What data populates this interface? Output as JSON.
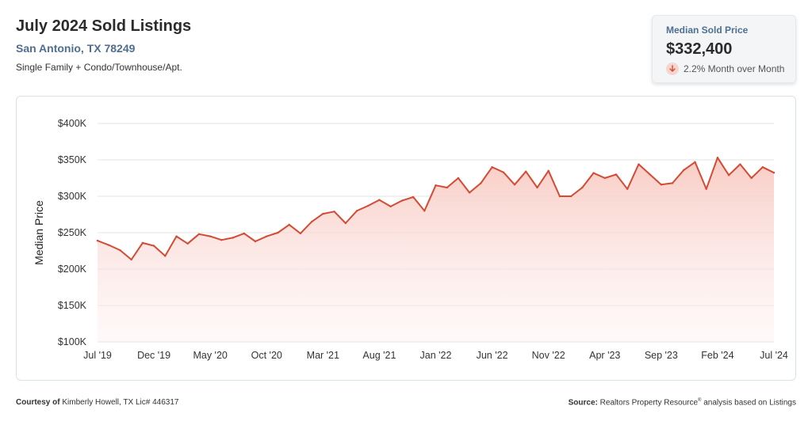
{
  "header": {
    "title": "July 2024 Sold Listings",
    "location": "San Antonio, TX 78249",
    "property_types": "Single Family + Condo/Townhouse/Apt."
  },
  "stat_card": {
    "label": "Median Sold Price",
    "value": "$332,400",
    "change": "2.2% Month over Month",
    "change_icon": "arrow-down-icon",
    "change_color": "#d44a33"
  },
  "footer": {
    "courtesy_label": "Courtesy of",
    "courtesy_text": "Kimberly Howell, TX Lic# 446317",
    "source_label": "Source:",
    "source_text": "Realtors Property Resource",
    "source_mark": "®",
    "source_suffix": " analysis based on Listings"
  },
  "colors": {
    "line": "#d44a33",
    "fill_top": "#f8c9c1",
    "grid": "#e3e3e3",
    "accent_text": "#4f6f8f"
  },
  "chart_data": {
    "type": "area",
    "title": "",
    "xlabel": "",
    "ylabel": "Median Price",
    "y_tick_labels": [
      "$100K",
      "$150K",
      "$200K",
      "$250K",
      "$300K",
      "$350K",
      "$400K"
    ],
    "y_tick_values": [
      100000,
      150000,
      200000,
      250000,
      300000,
      350000,
      400000
    ],
    "ylim": [
      100000,
      400000
    ],
    "x_tick_labels": [
      "Jul '19",
      "Dec '19",
      "May '20",
      "Oct '20",
      "Mar '21",
      "Aug '21",
      "Jan '22",
      "Jun '22",
      "Nov '22",
      "Apr '23",
      "Sep '23",
      "Feb '24",
      "Jul '24"
    ],
    "x_tick_positions": [
      0,
      5,
      10,
      15,
      20,
      25,
      30,
      35,
      40,
      45,
      50,
      55,
      60
    ],
    "grid": true,
    "legend": "none",
    "series": [
      {
        "x": [
          "Jul '19",
          "Aug '19",
          "Sep '19",
          "Oct '19",
          "Nov '19",
          "Dec '19",
          "Jan '20",
          "Feb '20",
          "Mar '20",
          "Apr '20",
          "May '20",
          "Jun '20",
          "Jul '20",
          "Aug '20",
          "Sep '20",
          "Oct '20",
          "Nov '20",
          "Dec '20",
          "Jan '21",
          "Feb '21",
          "Mar '21",
          "Apr '21",
          "May '21",
          "Jun '21",
          "Jul '21",
          "Aug '21",
          "Sep '21",
          "Oct '21",
          "Nov '21",
          "Dec '21",
          "Jan '22",
          "Feb '22",
          "Mar '22",
          "Apr '22",
          "May '22",
          "Jun '22",
          "Jul '22",
          "Aug '22",
          "Sep '22",
          "Oct '22",
          "Nov '22",
          "Dec '22",
          "Jan '23",
          "Feb '23",
          "Mar '23",
          "Apr '23",
          "May '23",
          "Jun '23",
          "Jul '23",
          "Aug '23",
          "Sep '23",
          "Oct '23",
          "Nov '23",
          "Dec '23",
          "Jan '24",
          "Feb '24",
          "Mar '24",
          "Apr '24",
          "May '24",
          "Jun '24",
          "Jul '24"
        ],
        "values": [
          239000,
          233000,
          226000,
          213000,
          236000,
          232000,
          218000,
          245000,
          235000,
          248000,
          245000,
          240000,
          243000,
          249000,
          238000,
          245000,
          250000,
          261000,
          249000,
          265000,
          276000,
          279000,
          263000,
          280000,
          287000,
          295000,
          286000,
          294000,
          299000,
          280000,
          315000,
          312000,
          325000,
          305000,
          318000,
          340000,
          333000,
          316000,
          334000,
          312000,
          335000,
          300000,
          300000,
          312000,
          332000,
          325000,
          330000,
          310000,
          344000,
          330000,
          316000,
          318000,
          336000,
          347000,
          310000,
          353000,
          329000,
          344000,
          325000,
          340000,
          332400
        ]
      }
    ]
  }
}
